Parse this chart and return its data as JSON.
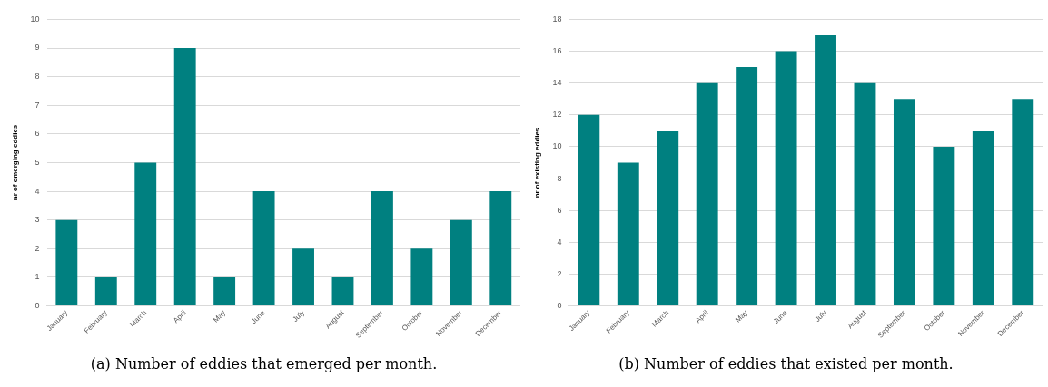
{
  "chart_data": [
    {
      "type": "bar",
      "title": "(a) Number of eddies that emerged per month.",
      "ylabel": "nr of emerging eddies",
      "categories": [
        "January",
        "February",
        "March",
        "April",
        "May",
        "June",
        "July",
        "August",
        "September",
        "October",
        "November",
        "December"
      ],
      "color": "#008080",
      "values": [
        3,
        1,
        5,
        9,
        1,
        4,
        2,
        1,
        4,
        2,
        3,
        4
      ],
      "ylim": [
        0,
        10
      ],
      "yticks": [
        0,
        1,
        2,
        3,
        4,
        5,
        6,
        7,
        8,
        9,
        10
      ],
      "grid": "y"
    },
    {
      "type": "bar",
      "title": "(b) Number of eddies that existed per month.",
      "ylabel": "nr of existing eddies",
      "categories": [
        "January",
        "February",
        "March",
        "April",
        "May",
        "June",
        "July",
        "August",
        "September",
        "October",
        "November",
        "December"
      ],
      "color": "#008080",
      "values": [
        12,
        9,
        11,
        14,
        15,
        16,
        17,
        14,
        13,
        10,
        11,
        13
      ],
      "ylim": [
        0,
        18
      ],
      "yticks": [
        0,
        2,
        4,
        6,
        8,
        10,
        12,
        14,
        16,
        18
      ],
      "grid": "y"
    }
  ]
}
